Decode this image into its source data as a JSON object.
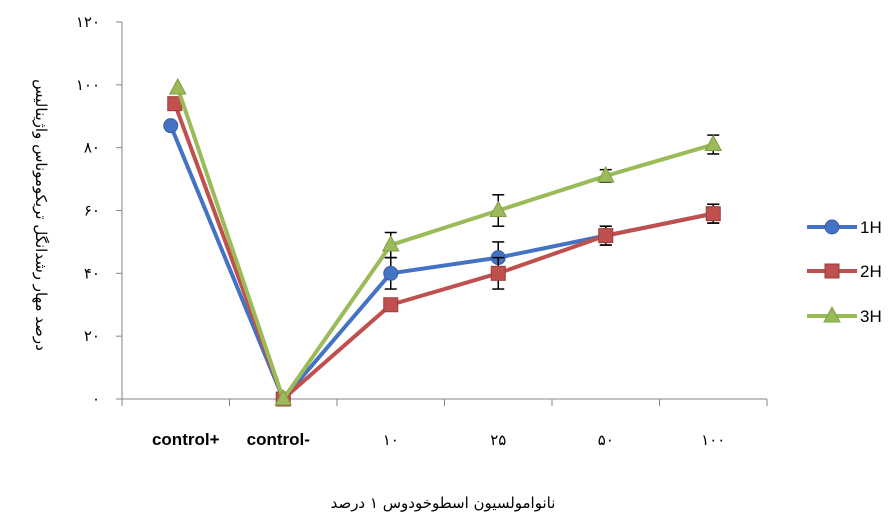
{
  "chart_data": {
    "type": "line",
    "categories": [
      "control+",
      "control-",
      "۱۰",
      "۲۵",
      "۵۰",
      "۱۰۰"
    ],
    "category_labels_display": [
      "control+",
      "control-",
      "۱۰",
      "۲۵",
      "۵۰",
      "۱۰۰"
    ],
    "yticks": [
      "۰",
      "۲۰",
      "۴۰",
      "۶۰",
      "۸۰",
      "۱۰۰",
      "۱۲۰"
    ],
    "ylim": [
      0,
      120
    ],
    "xlabel": "نانوامولسیون اسطوخودوس ۱ درصد",
    "ylabel": "درصد مهار رشدانگل تریکوموناس واژینالیس",
    "legend_position": "right",
    "grid": false,
    "series": [
      {
        "name": "1H",
        "color": "#4472C4",
        "marker": "circle",
        "values": [
          87,
          0,
          40,
          45,
          52,
          59
        ],
        "errors": [
          null,
          null,
          5,
          5,
          3,
          3
        ]
      },
      {
        "name": "2H",
        "color": "#C0504D",
        "marker": "square",
        "values": [
          94,
          0,
          30,
          40,
          52,
          59
        ],
        "errors": [
          null,
          null,
          null,
          5,
          3,
          3
        ]
      },
      {
        "name": "3H",
        "color": "#9BBB59",
        "marker": "triangle",
        "values": [
          99,
          0,
          49,
          60,
          71,
          81
        ],
        "errors": [
          null,
          null,
          4,
          5,
          2,
          3
        ]
      }
    ]
  }
}
